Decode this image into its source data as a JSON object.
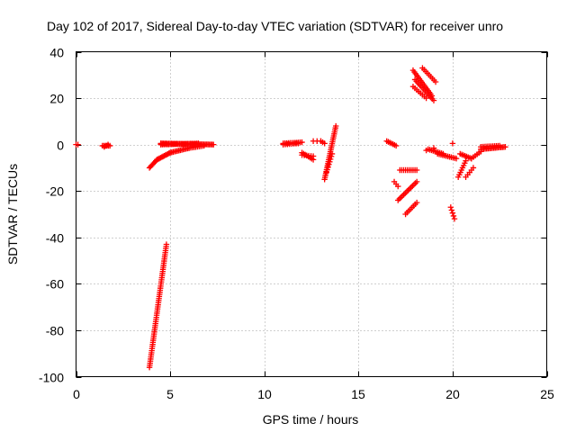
{
  "chart_data": {
    "type": "scatter",
    "title": "Day 102 of 2017, Sidereal Day-to-day VTEC variation (SDTVAR) for receiver unro",
    "xlabel": "GPS time / hours",
    "ylabel": "SDTVAR / TECUs",
    "xlim": [
      0,
      25
    ],
    "ylim": [
      -100,
      40
    ],
    "xticks": [
      0,
      5,
      10,
      15,
      20,
      25
    ],
    "xtick_labels": [
      "0",
      "5",
      "10",
      "15",
      "20",
      "25"
    ],
    "yticks": [
      -100,
      -80,
      -60,
      -40,
      -20,
      0,
      20,
      40
    ],
    "ytick_labels": [
      "-100",
      "-80",
      "-60",
      "-40",
      "-20",
      "0",
      "20",
      "40"
    ],
    "grid": true,
    "marker": "+",
    "color": "#ff0000",
    "segments": [
      {
        "x0": 0.0,
        "y0": 0.0,
        "x1": 0.1,
        "y1": 0.0,
        "n": 2
      },
      {
        "x0": 1.4,
        "y0": -0.5,
        "x1": 1.8,
        "y1": -0.5,
        "n": 6
      },
      {
        "x0": 1.5,
        "y0": -1.0,
        "x1": 1.7,
        "y1": 0.0,
        "n": 3
      },
      {
        "x0": 3.9,
        "y0": -96.0,
        "x1": 4.8,
        "y1": -43.0,
        "n": 60
      },
      {
        "x0": 3.9,
        "y0": -10.0,
        "x1": 4.3,
        "y1": -6.5,
        "n": 8
      },
      {
        "x0": 4.3,
        "y0": -6.5,
        "x1": 5.0,
        "y1": -3.5,
        "n": 12
      },
      {
        "x0": 5.0,
        "y0": -3.5,
        "x1": 6.0,
        "y1": -1.5,
        "n": 14
      },
      {
        "x0": 6.0,
        "y0": -1.5,
        "x1": 6.8,
        "y1": -0.5,
        "n": 10
      },
      {
        "x0": 4.5,
        "y0": 0.5,
        "x1": 7.3,
        "y1": 0.0,
        "n": 40
      },
      {
        "x0": 4.5,
        "y0": 0.0,
        "x1": 6.5,
        "y1": 0.5,
        "n": 25
      },
      {
        "x0": 11.0,
        "y0": 0.5,
        "x1": 12.0,
        "y1": 1.0,
        "n": 12
      },
      {
        "x0": 11.0,
        "y0": 0.0,
        "x1": 11.8,
        "y1": 0.5,
        "n": 8
      },
      {
        "x0": 12.0,
        "y0": -3.5,
        "x1": 12.6,
        "y1": -6.5,
        "n": 8
      },
      {
        "x0": 12.0,
        "y0": -4.5,
        "x1": 12.6,
        "y1": -5.0,
        "n": 6
      },
      {
        "x0": 12.6,
        "y0": 1.5,
        "x1": 13.0,
        "y1": 1.5,
        "n": 3
      },
      {
        "x0": 13.0,
        "y0": 1.5,
        "x1": 13.2,
        "y1": 0.5,
        "n": 3
      },
      {
        "x0": 13.2,
        "y0": -15.0,
        "x1": 13.8,
        "y1": 8.0,
        "n": 28
      },
      {
        "x0": 13.3,
        "y0": -12.0,
        "x1": 13.6,
        "y1": -4.0,
        "n": 8
      },
      {
        "x0": 16.5,
        "y0": 1.5,
        "x1": 17.0,
        "y1": -0.5,
        "n": 7
      },
      {
        "x0": 16.9,
        "y0": -16.0,
        "x1": 17.1,
        "y1": -18.0,
        "n": 3
      },
      {
        "x0": 17.2,
        "y0": -11.0,
        "x1": 18.1,
        "y1": -11.0,
        "n": 10
      },
      {
        "x0": 17.1,
        "y0": -24.0,
        "x1": 18.1,
        "y1": -16.0,
        "n": 14
      },
      {
        "x0": 17.5,
        "y0": -30.0,
        "x1": 18.1,
        "y1": -25.0,
        "n": 8
      },
      {
        "x0": 17.9,
        "y0": 32.0,
        "x1": 18.9,
        "y1": 21.0,
        "n": 16
      },
      {
        "x0": 18.0,
        "y0": 28.0,
        "x1": 19.0,
        "y1": 19.0,
        "n": 14
      },
      {
        "x0": 17.9,
        "y0": 25.0,
        "x1": 18.6,
        "y1": 20.0,
        "n": 8
      },
      {
        "x0": 18.4,
        "y0": 33.0,
        "x1": 19.1,
        "y1": 27.0,
        "n": 9
      },
      {
        "x0": 18.7,
        "y0": -2.0,
        "x1": 19.5,
        "y1": -4.0,
        "n": 10
      },
      {
        "x0": 19.2,
        "y0": -4.0,
        "x1": 20.2,
        "y1": -6.0,
        "n": 12
      },
      {
        "x0": 19.9,
        "y0": -27.0,
        "x1": 20.1,
        "y1": -32.0,
        "n": 5
      },
      {
        "x0": 20.3,
        "y0": -14.0,
        "x1": 20.7,
        "y1": -7.0,
        "n": 8
      },
      {
        "x0": 20.4,
        "y0": -4.0,
        "x1": 21.0,
        "y1": -6.0,
        "n": 8
      },
      {
        "x0": 20.7,
        "y0": -14.0,
        "x1": 21.1,
        "y1": -10.0,
        "n": 5
      },
      {
        "x0": 21.0,
        "y0": -6.0,
        "x1": 21.5,
        "y1": -3.0,
        "n": 6
      },
      {
        "x0": 21.5,
        "y0": -2.0,
        "x1": 22.8,
        "y1": -1.0,
        "n": 18
      },
      {
        "x0": 21.5,
        "y0": -1.0,
        "x1": 22.5,
        "y1": -0.5,
        "n": 12
      }
    ],
    "points": [
      {
        "x": 20.0,
        "y": 0.5
      },
      {
        "x": 19.0,
        "y": -1.5
      },
      {
        "x": 18.6,
        "y": -2.5
      }
    ]
  }
}
